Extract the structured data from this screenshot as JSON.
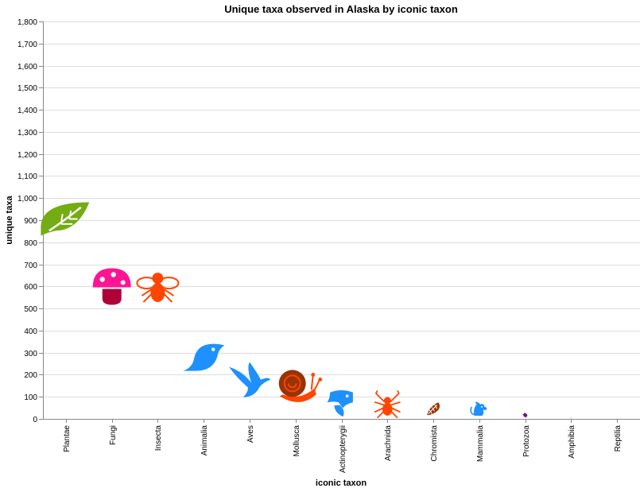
{
  "chart_data": {
    "type": "scatter",
    "title": "Unique taxa observed in Alaska by iconic taxon",
    "xlabel": "iconic taxon",
    "ylabel": "unique taxa",
    "ylim": [
      0,
      1800
    ],
    "ytick_step": 100,
    "y_ticks": [
      "0",
      "100",
      "200",
      "300",
      "400",
      "500",
      "600",
      "700",
      "800",
      "900",
      "1,000",
      "1,100",
      "1,200",
      "1,300",
      "1,400",
      "1,500",
      "1,600",
      "1,700",
      "1,800"
    ],
    "grid": true,
    "legend": "none",
    "mark": "icon",
    "categories": [
      "Plantae",
      "Fungi",
      "Insecta",
      "Animalia",
      "Aves",
      "Mollusca",
      "Actinopterygii",
      "Arachnida",
      "Chromista",
      "Mammalia",
      "Protozoa",
      "Amphibia",
      "Reptilia"
    ],
    "values": [
      898,
      603,
      601,
      275,
      178,
      146,
      81,
      70,
      46,
      43,
      17,
      2,
      0
    ],
    "icons": [
      "leaf-icon",
      "mushroom-icon",
      "insect-icon",
      "bird-icon",
      "flying-bird-icon",
      "snail-icon",
      "fish-icon",
      "spider-icon",
      "seaweed-icon",
      "mammal-icon",
      "protozoa-icon",
      "amphibian-icon",
      "reptile-icon"
    ],
    "colors": [
      "#73AC13",
      "#FF1493",
      "#FF4500",
      "#1E90FF",
      "#1E90FF",
      "#FF4500",
      "#1E90FF",
      "#FF4500",
      "#993300",
      "#1E90FF",
      "#691776",
      "#1E90FF",
      "#1E90FF"
    ]
  }
}
